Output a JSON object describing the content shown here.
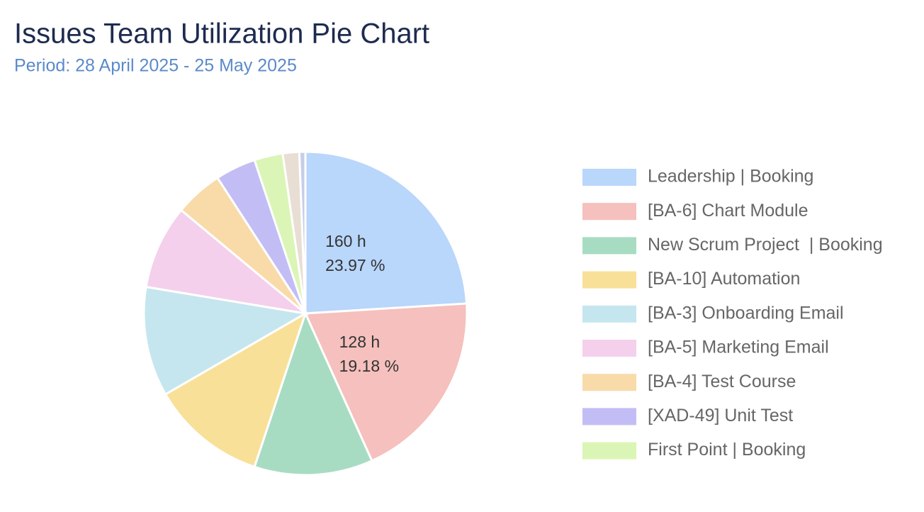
{
  "chart_data": {
    "type": "pie",
    "title": "Issues Team Utilization Pie Chart",
    "subtitle": "Period: 28 April 2025 - 25 May 2025",
    "categories": [
      "Leadership | Booking",
      "[BA-6] Chart Module",
      "New Scrum Project  | Booking",
      "[BA-10] Automation",
      "[BA-3] Onboarding Email",
      "[BA-5] Marketing Email",
      "[BA-4] Test Course",
      "[XAD-49] Unit Test",
      "First Point | Booking",
      null,
      null
    ],
    "values": [
      160,
      128,
      79,
      77,
      73,
      56,
      32,
      27,
      19,
      11,
      4
    ],
    "value_labels": [
      "160 h",
      "128 h",
      null,
      null,
      null,
      null,
      null,
      null,
      null,
      null,
      null
    ],
    "percent_labels": [
      "23.97 %",
      "19.18 %",
      null,
      null,
      null,
      null,
      null,
      null,
      null,
      null,
      null
    ],
    "colors": [
      "#b9d6fb",
      "#f5c0bd",
      "#a7dcc3",
      "#f9e098",
      "#c5e6ee",
      "#f4d0ec",
      "#f8dba9",
      "#c3bdf5",
      "#daf5b5",
      "#e8ded3",
      "#c5cde8"
    ],
    "legend": "right"
  }
}
